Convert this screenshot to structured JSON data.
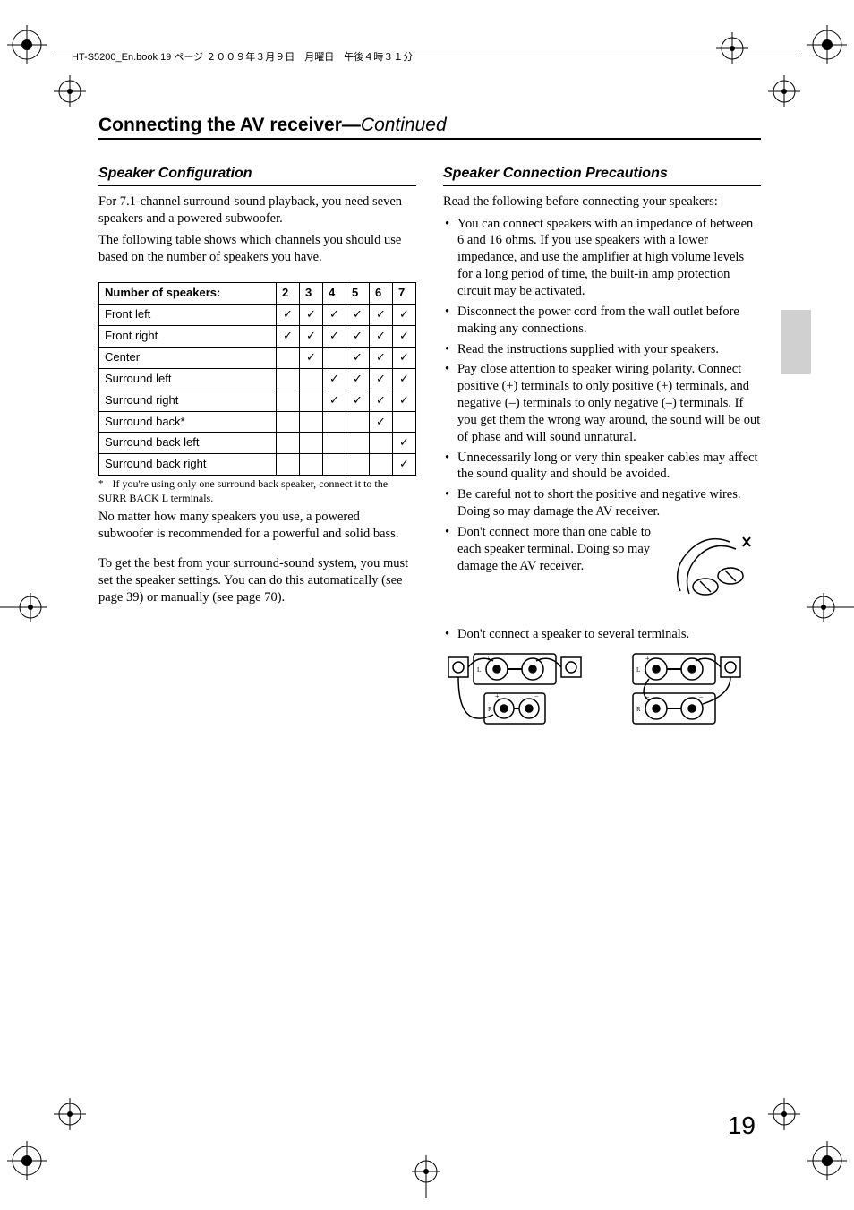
{
  "header_line": "HT-S5200_En.book  19 ページ  ２００９年３月９日　月曜日　午後４時３１分",
  "page_title_main": "Connecting the AV receiver",
  "page_title_sep": "—",
  "page_title_cont": "Continued",
  "left": {
    "heading": "Speaker Configuration",
    "para1": "For 7.1-channel surround-sound playback, you need seven speakers and a powered subwoofer.",
    "para2": "The following table shows which channels you should use based on the number of speakers you have.",
    "table": {
      "header_label": "Number of speakers:",
      "cols": [
        "2",
        "3",
        "4",
        "5",
        "6",
        "7"
      ],
      "rows": [
        {
          "label": "Front left",
          "cells": [
            1,
            1,
            1,
            1,
            1,
            1
          ]
        },
        {
          "label": "Front right",
          "cells": [
            1,
            1,
            1,
            1,
            1,
            1
          ]
        },
        {
          "label": "Center",
          "cells": [
            0,
            1,
            0,
            1,
            1,
            1
          ]
        },
        {
          "label": "Surround left",
          "cells": [
            0,
            0,
            1,
            1,
            1,
            1
          ]
        },
        {
          "label": "Surround right",
          "cells": [
            0,
            0,
            1,
            1,
            1,
            1
          ]
        },
        {
          "label": "Surround back*",
          "cells": [
            0,
            0,
            0,
            0,
            1,
            0
          ]
        },
        {
          "label": "Surround back left",
          "cells": [
            0,
            0,
            0,
            0,
            0,
            1
          ]
        },
        {
          "label": "Surround back right",
          "cells": [
            0,
            0,
            0,
            0,
            0,
            1
          ]
        }
      ]
    },
    "footnote_mark": "*",
    "footnote_text": "If you're using only one surround back speaker, connect it to the SURR BACK L terminals.",
    "para3": "No matter how many speakers you use, a powered subwoofer is recommended for a powerful and solid bass.",
    "para4": "To get the best from your surround-sound system, you must set the speaker settings. You can do this automatically (see page 39) or manually (see page 70)."
  },
  "right": {
    "heading": "Speaker Connection Precautions",
    "intro": "Read the following before connecting your speakers:",
    "bullets": [
      "You can connect speakers with an impedance of between 6 and 16 ohms. If you use speakers with a lower impedance, and use the amplifier at high volume levels for a long period of time, the built-in amp protection circuit may be activated.",
      "Disconnect the power cord from the wall outlet before making any connections.",
      "Read the instructions supplied with your speakers.",
      "Pay close attention to speaker wiring polarity. Connect positive (+) terminals to only positive (+) terminals, and negative (–) terminals to only negative (–) terminals. If you get them the wrong way around, the sound will be out of phase and will sound unnatural.",
      "Unnecessarily long or very thin speaker cables may affect the sound quality and should be avoided.",
      "Be careful not to short the positive and negative wires. Doing so may damage the AV receiver."
    ],
    "bullet_fig": "Don't connect more than one cable to each speaker terminal. Doing so may damage the AV receiver.",
    "bullet_last": "Don't connect a speaker to several terminals."
  },
  "page_number": "19",
  "colors": {
    "text": "#000000",
    "rule": "#000000",
    "tab": "#d0d0d0",
    "bg": "#ffffff"
  }
}
